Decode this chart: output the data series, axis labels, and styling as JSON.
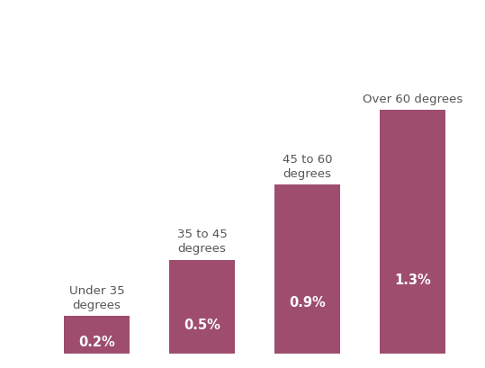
{
  "categories": [
    "Under 35\ndegrees",
    "35 to 45\ndegrees",
    "45 to 60\ndegrees",
    "Over 60 degrees"
  ],
  "values": [
    0.2,
    0.5,
    0.9,
    1.3
  ],
  "bar_labels": [
    "0.2%",
    "0.5%",
    "0.9%",
    "1.3%"
  ],
  "bar_color": "#9e4d6e",
  "label_color_inside": "#ffffff",
  "text_color": "#555555",
  "background_color": "#ffffff",
  "ylim": [
    0,
    1.65
  ],
  "bar_width": 0.62,
  "label_fontsize": 10.5,
  "category_fontsize": 9.5,
  "label_fontweight": "bold",
  "figsize": [
    5.39,
    4.09
  ],
  "dpi": 100
}
